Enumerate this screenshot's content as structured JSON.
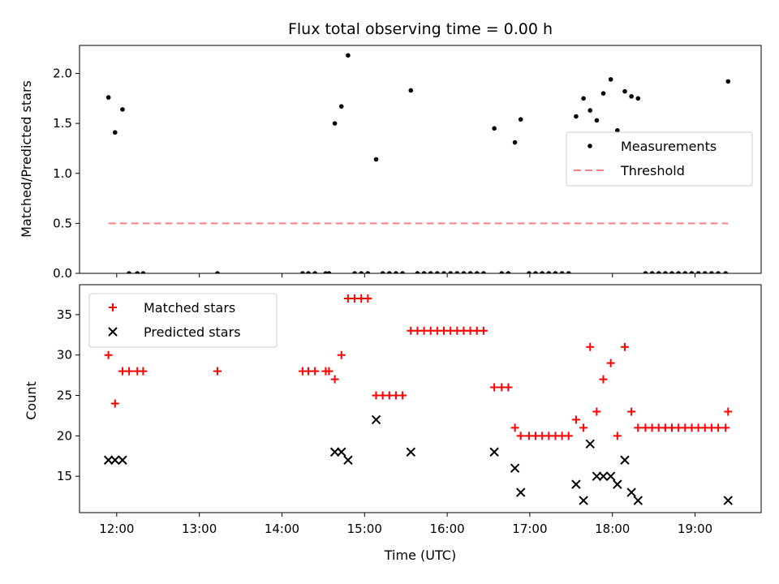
{
  "chart_data": [
    {
      "type": "scatter",
      "title": "Flux total observing time = 0.00 h",
      "xlabel": "",
      "ylabel": "Matched/Predicted stars",
      "ylim": [
        0,
        2.28
      ],
      "yticks": [
        0.0,
        0.5,
        1.0,
        1.5,
        2.0
      ],
      "ytick_labels": [
        "0.0",
        "0.5",
        "1.0",
        "1.5",
        "2.0"
      ],
      "xlim": [
        11.55,
        19.8
      ],
      "xticks": [
        12,
        13,
        14,
        15,
        16,
        17,
        18,
        19
      ],
      "xtick_labels": [],
      "legend_position": "center-right",
      "series": [
        {
          "name": "Measurements",
          "kind": "points",
          "color": "#000000",
          "points": [
            [
              11.9,
              1.76
            ],
            [
              11.98,
              1.41
            ],
            [
              12.07,
              1.64
            ],
            [
              12.15,
              0.0
            ],
            [
              12.25,
              0.0
            ],
            [
              12.32,
              0.0
            ],
            [
              13.22,
              0.0
            ],
            [
              14.25,
              0.0
            ],
            [
              14.32,
              0.0
            ],
            [
              14.4,
              0.0
            ],
            [
              14.53,
              0.0
            ],
            [
              14.57,
              0.0
            ],
            [
              14.64,
              1.5
            ],
            [
              14.72,
              1.67
            ],
            [
              14.8,
              2.18
            ],
            [
              14.88,
              0.0
            ],
            [
              14.96,
              0.0
            ],
            [
              15.04,
              0.0
            ],
            [
              15.14,
              1.14
            ],
            [
              15.22,
              0.0
            ],
            [
              15.3,
              0.0
            ],
            [
              15.38,
              0.0
            ],
            [
              15.46,
              0.0
            ],
            [
              15.56,
              1.83
            ],
            [
              15.64,
              0.0
            ],
            [
              15.72,
              0.0
            ],
            [
              15.8,
              0.0
            ],
            [
              15.88,
              0.0
            ],
            [
              15.96,
              0.0
            ],
            [
              16.04,
              0.0
            ],
            [
              16.12,
              0.0
            ],
            [
              16.2,
              0.0
            ],
            [
              16.28,
              0.0
            ],
            [
              16.36,
              0.0
            ],
            [
              16.44,
              0.0
            ],
            [
              16.57,
              1.45
            ],
            [
              16.66,
              0.0
            ],
            [
              16.74,
              0.0
            ],
            [
              16.82,
              1.31
            ],
            [
              16.89,
              1.54
            ],
            [
              16.99,
              0.0
            ],
            [
              17.07,
              0.0
            ],
            [
              17.15,
              0.0
            ],
            [
              17.23,
              0.0
            ],
            [
              17.31,
              0.0
            ],
            [
              17.39,
              0.0
            ],
            [
              17.47,
              0.0
            ],
            [
              17.56,
              1.57
            ],
            [
              17.65,
              1.75
            ],
            [
              17.73,
              1.63
            ],
            [
              17.81,
              1.53
            ],
            [
              17.89,
              1.8
            ],
            [
              17.98,
              1.94
            ],
            [
              18.06,
              1.43
            ],
            [
              18.15,
              1.82
            ],
            [
              18.23,
              1.77
            ],
            [
              18.31,
              1.75
            ],
            [
              18.4,
              0.0
            ],
            [
              18.48,
              0.0
            ],
            [
              18.56,
              0.0
            ],
            [
              18.64,
              0.0
            ],
            [
              18.72,
              0.0
            ],
            [
              18.8,
              0.0
            ],
            [
              18.88,
              0.0
            ],
            [
              18.96,
              0.0
            ],
            [
              19.04,
              0.0
            ],
            [
              19.12,
              0.0
            ],
            [
              19.2,
              0.0
            ],
            [
              19.28,
              0.0
            ],
            [
              19.37,
              0.0
            ],
            [
              19.4,
              1.92
            ]
          ]
        },
        {
          "name": "Threshold",
          "kind": "dashed-line",
          "color": "#ff8080",
          "points": [
            [
              11.9,
              0.5
            ],
            [
              19.4,
              0.5
            ]
          ]
        }
      ]
    },
    {
      "type": "scatter",
      "title": "",
      "xlabel": "Time (UTC)",
      "ylabel": "Count",
      "ylim": [
        10.5,
        38.7
      ],
      "yticks": [
        15,
        20,
        25,
        30,
        35
      ],
      "ytick_labels": [
        "15",
        "20",
        "25",
        "30",
        "35"
      ],
      "xlim": [
        11.55,
        19.8
      ],
      "xticks": [
        12,
        13,
        14,
        15,
        16,
        17,
        18,
        19
      ],
      "xtick_labels": [
        "12:00",
        "13:00",
        "14:00",
        "15:00",
        "16:00",
        "17:00",
        "18:00",
        "19:00"
      ],
      "legend_position": "top-left",
      "series": [
        {
          "name": "Matched stars",
          "kind": "plus",
          "color": "#ff0000",
          "points": [
            [
              11.9,
              30
            ],
            [
              11.98,
              24
            ],
            [
              12.07,
              28
            ],
            [
              12.15,
              28
            ],
            [
              12.25,
              28
            ],
            [
              12.32,
              28
            ],
            [
              13.22,
              28
            ],
            [
              14.25,
              28
            ],
            [
              14.32,
              28
            ],
            [
              14.4,
              28
            ],
            [
              14.53,
              28
            ],
            [
              14.57,
              28
            ],
            [
              14.64,
              27
            ],
            [
              14.72,
              30
            ],
            [
              14.8,
              37
            ],
            [
              14.88,
              37
            ],
            [
              14.96,
              37
            ],
            [
              15.04,
              37
            ],
            [
              15.14,
              25
            ],
            [
              15.22,
              25
            ],
            [
              15.3,
              25
            ],
            [
              15.38,
              25
            ],
            [
              15.46,
              25
            ],
            [
              15.56,
              33
            ],
            [
              15.64,
              33
            ],
            [
              15.72,
              33
            ],
            [
              15.8,
              33
            ],
            [
              15.88,
              33
            ],
            [
              15.96,
              33
            ],
            [
              16.04,
              33
            ],
            [
              16.12,
              33
            ],
            [
              16.2,
              33
            ],
            [
              16.28,
              33
            ],
            [
              16.36,
              33
            ],
            [
              16.44,
              33
            ],
            [
              16.57,
              26
            ],
            [
              16.66,
              26
            ],
            [
              16.74,
              26
            ],
            [
              16.82,
              21
            ],
            [
              16.89,
              20
            ],
            [
              16.99,
              20
            ],
            [
              17.07,
              20
            ],
            [
              17.15,
              20
            ],
            [
              17.23,
              20
            ],
            [
              17.31,
              20
            ],
            [
              17.39,
              20
            ],
            [
              17.47,
              20
            ],
            [
              17.56,
              22
            ],
            [
              17.65,
              21
            ],
            [
              17.73,
              31
            ],
            [
              17.81,
              23
            ],
            [
              17.89,
              27
            ],
            [
              17.98,
              29
            ],
            [
              18.06,
              20
            ],
            [
              18.15,
              31
            ],
            [
              18.23,
              23
            ],
            [
              18.31,
              21
            ],
            [
              18.4,
              21
            ],
            [
              18.48,
              21
            ],
            [
              18.56,
              21
            ],
            [
              18.64,
              21
            ],
            [
              18.72,
              21
            ],
            [
              18.8,
              21
            ],
            [
              18.88,
              21
            ],
            [
              18.96,
              21
            ],
            [
              19.04,
              21
            ],
            [
              19.12,
              21
            ],
            [
              19.2,
              21
            ],
            [
              19.28,
              21
            ],
            [
              19.37,
              21
            ],
            [
              19.4,
              23
            ]
          ]
        },
        {
          "name": "Predicted stars",
          "kind": "cross",
          "color": "#000000",
          "points": [
            [
              11.9,
              17
            ],
            [
              11.98,
              17
            ],
            [
              12.07,
              17
            ],
            [
              14.64,
              18
            ],
            [
              14.72,
              18
            ],
            [
              14.8,
              17
            ],
            [
              15.14,
              22
            ],
            [
              15.56,
              18
            ],
            [
              16.57,
              18
            ],
            [
              16.82,
              16
            ],
            [
              16.89,
              13
            ],
            [
              17.56,
              14
            ],
            [
              17.65,
              12
            ],
            [
              17.73,
              19
            ],
            [
              17.81,
              15
            ],
            [
              17.89,
              15
            ],
            [
              17.98,
              15
            ],
            [
              18.06,
              14
            ],
            [
              18.15,
              17
            ],
            [
              18.23,
              13
            ],
            [
              18.31,
              12
            ],
            [
              19.4,
              12
            ]
          ]
        }
      ]
    }
  ]
}
